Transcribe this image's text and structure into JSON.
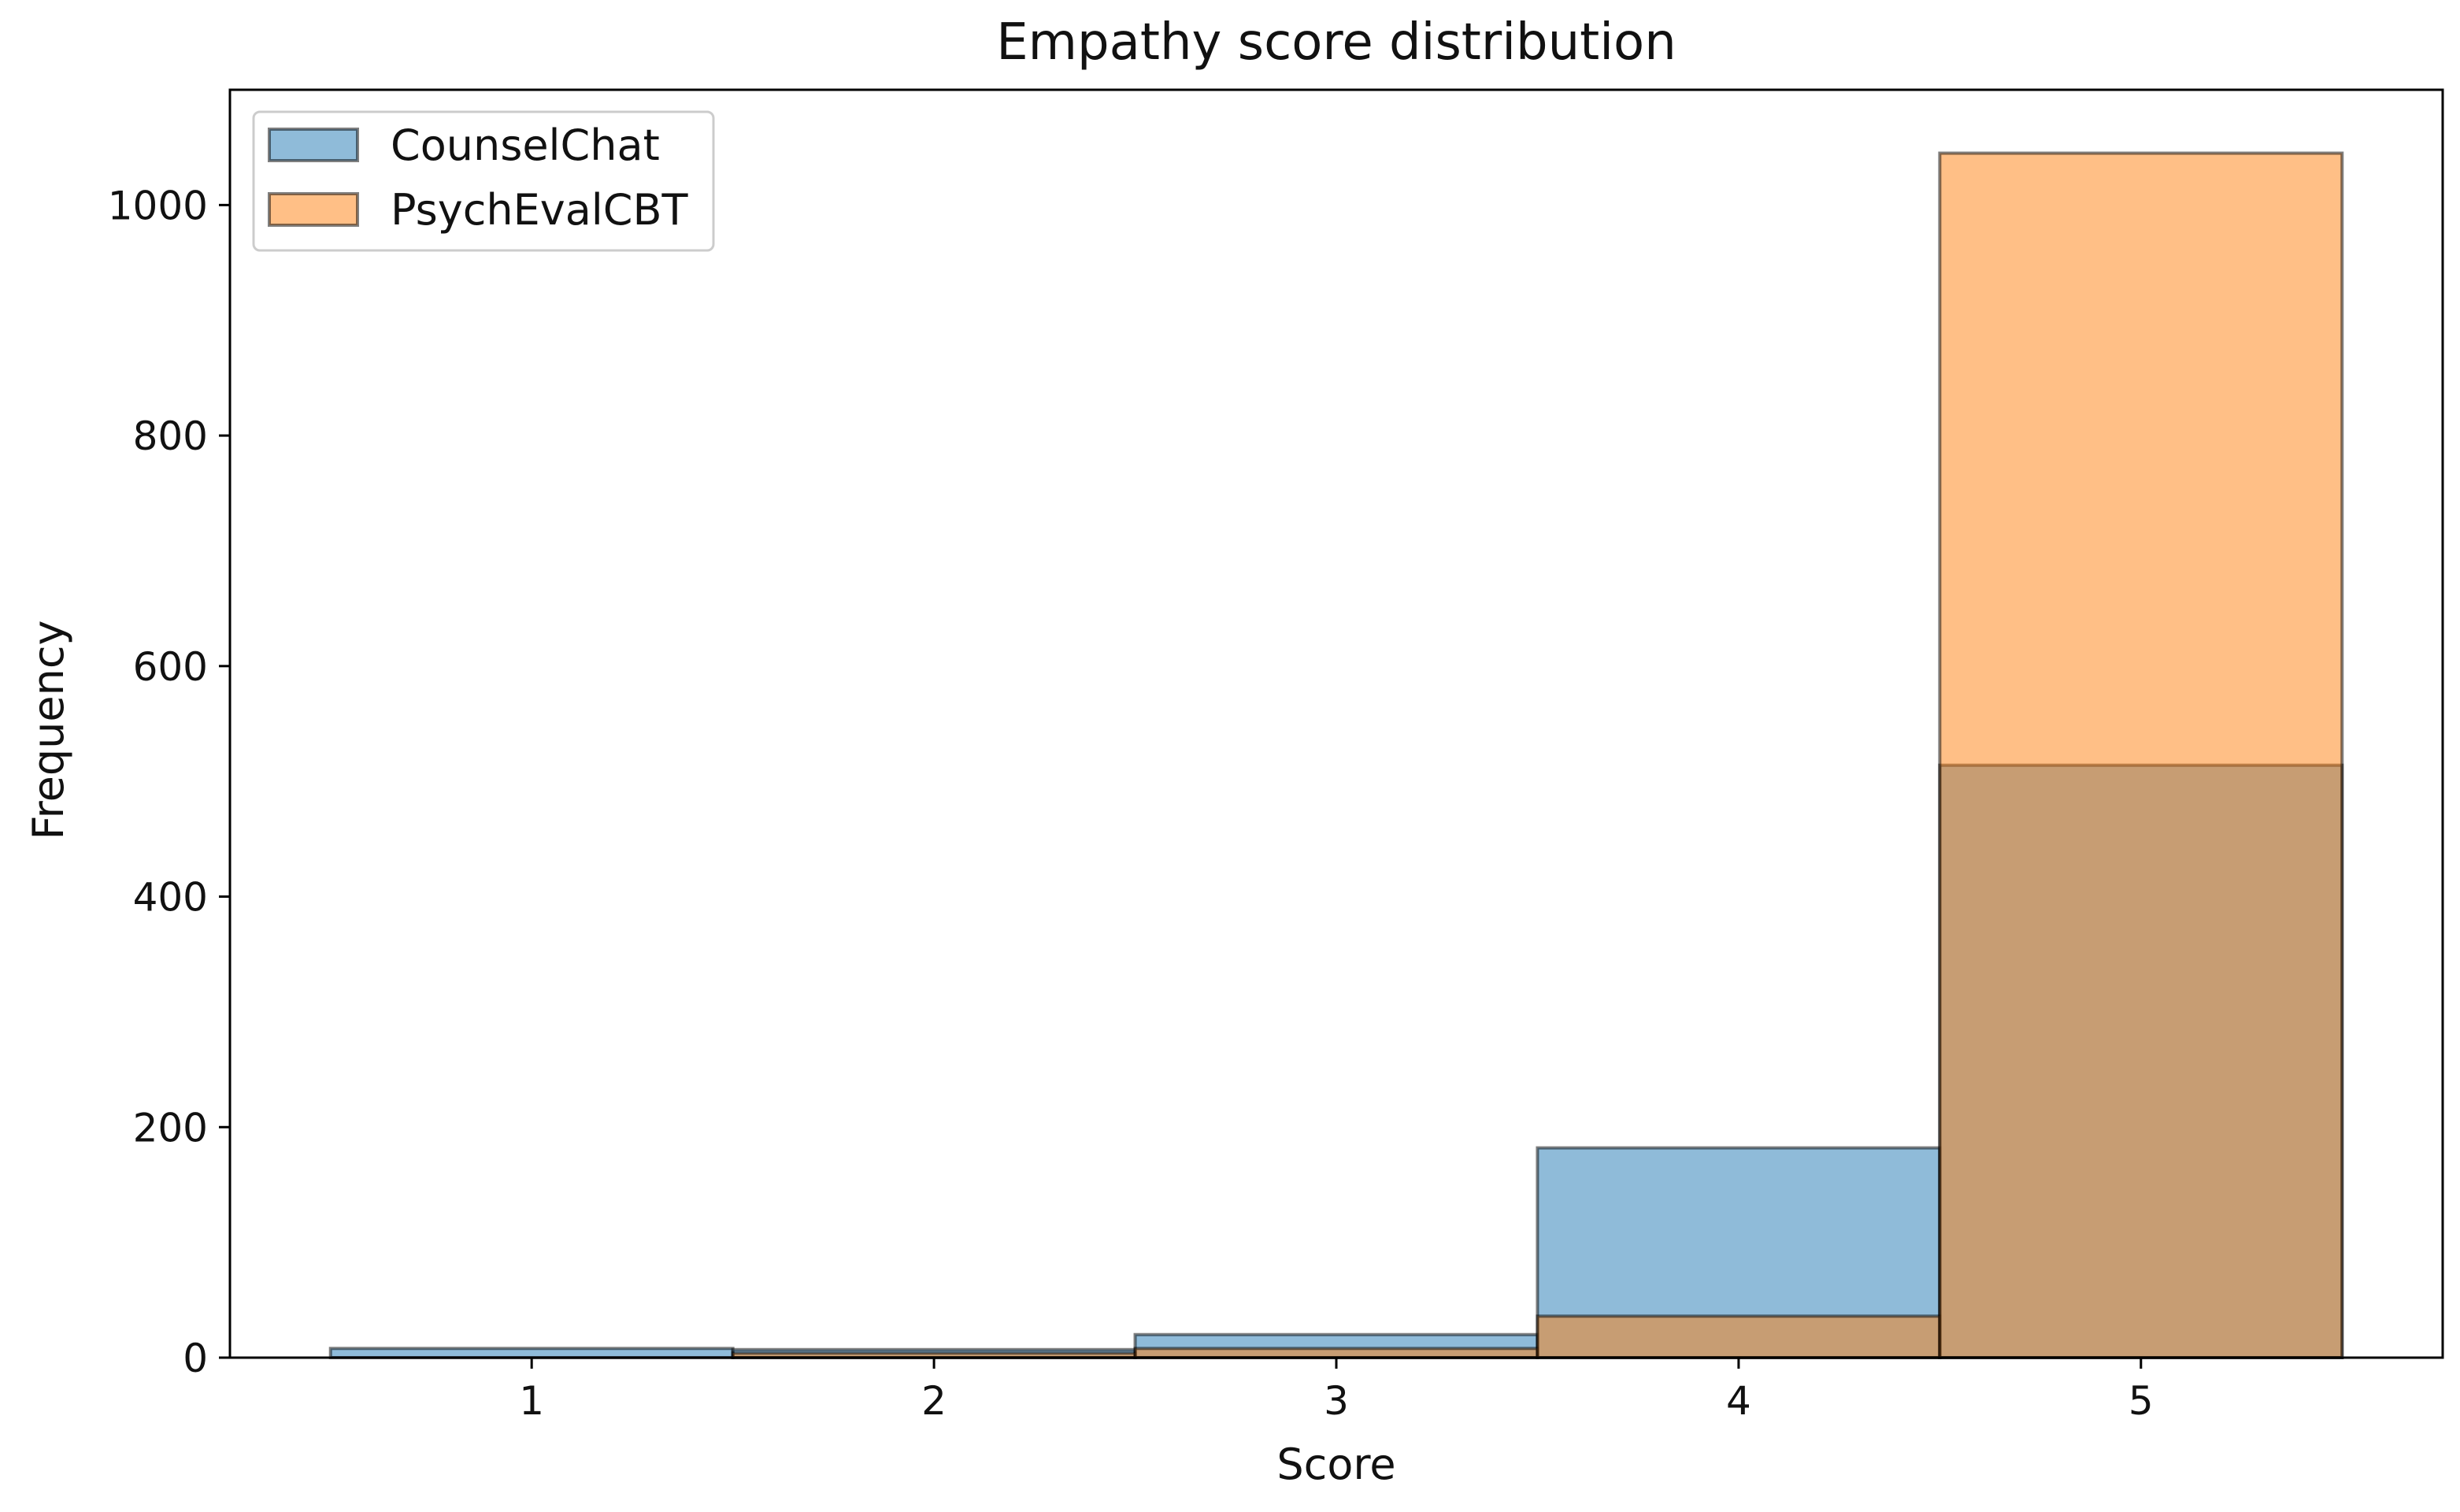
{
  "chart_data": {
    "type": "bar",
    "title": "Empathy score distribution",
    "xlabel": "Score",
    "ylabel": "Frequency",
    "categories": [
      "1",
      "2",
      "3",
      "4",
      "5"
    ],
    "x": [
      1,
      2,
      3,
      4,
      5
    ],
    "series": [
      {
        "name": "CounselChat",
        "values": [
          8,
          7,
          20,
          182,
          514
        ],
        "color": "#1f77b4",
        "opacity": 0.5
      },
      {
        "name": "PsychEvalCBT",
        "values": [
          0,
          4,
          8,
          36,
          1045
        ],
        "color": "#ff7f0e",
        "opacity": 0.5
      }
    ],
    "bar_edge_color": "#000000",
    "xlim": [
      0.25,
      5.75
    ],
    "ylim": [
      0,
      1100
    ],
    "x_ticks": [
      1,
      2,
      3,
      4,
      5
    ],
    "y_ticks": [
      0,
      200,
      400,
      600,
      800,
      1000
    ],
    "grid": false,
    "legend_position": "top-left",
    "overlay": true
  }
}
